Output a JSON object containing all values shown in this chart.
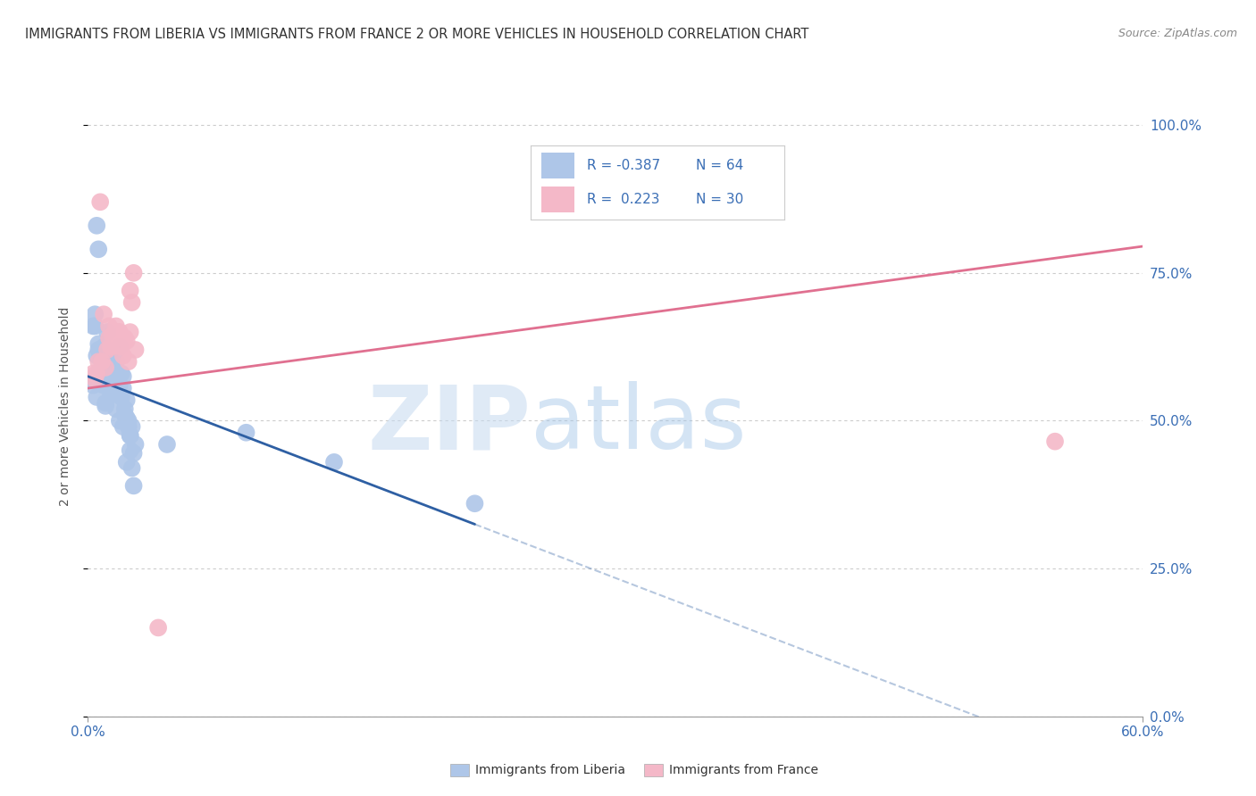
{
  "title": "IMMIGRANTS FROM LIBERIA VS IMMIGRANTS FROM FRANCE 2 OR MORE VEHICLES IN HOUSEHOLD CORRELATION CHART",
  "source": "Source: ZipAtlas.com",
  "ylabel": "2 or more Vehicles in Household",
  "ytick_labels": [
    "0.0%",
    "25.0%",
    "50.0%",
    "75.0%",
    "100.0%"
  ],
  "ytick_vals": [
    0.0,
    0.25,
    0.5,
    0.75,
    1.0
  ],
  "xlim": [
    0.0,
    0.6
  ],
  "ylim": [
    0.0,
    1.05
  ],
  "liberia_R": -0.387,
  "liberia_N": 64,
  "france_R": 0.223,
  "france_N": 30,
  "liberia_color": "#aec6e8",
  "france_color": "#f4b8c8",
  "liberia_line_color": "#2e5fa3",
  "france_line_color": "#e07090",
  "watermark_zip": "ZIP",
  "watermark_atlas": "atlas",
  "liberia_scatter_x": [
    0.005,
    0.006,
    0.007,
    0.008,
    0.009,
    0.01,
    0.011,
    0.012,
    0.013,
    0.014,
    0.015,
    0.016,
    0.017,
    0.018,
    0.019,
    0.02,
    0.021,
    0.022,
    0.023,
    0.024,
    0.025,
    0.026,
    0.027,
    0.003,
    0.004,
    0.006,
    0.008,
    0.01,
    0.012,
    0.014,
    0.016,
    0.018,
    0.02,
    0.022,
    0.024,
    0.005,
    0.007,
    0.009,
    0.011,
    0.013,
    0.015,
    0.017,
    0.019,
    0.021,
    0.023,
    0.025,
    0.004,
    0.006,
    0.008,
    0.01,
    0.012,
    0.014,
    0.016,
    0.018,
    0.02,
    0.022,
    0.024,
    0.026,
    0.14,
    0.22,
    0.09,
    0.045,
    0.003,
    0.005
  ],
  "liberia_scatter_y": [
    0.83,
    0.79,
    0.61,
    0.58,
    0.625,
    0.56,
    0.65,
    0.61,
    0.59,
    0.58,
    0.59,
    0.6,
    0.56,
    0.625,
    0.58,
    0.575,
    0.52,
    0.535,
    0.5,
    0.475,
    0.49,
    0.445,
    0.46,
    0.66,
    0.68,
    0.62,
    0.62,
    0.53,
    0.59,
    0.585,
    0.57,
    0.56,
    0.555,
    0.505,
    0.475,
    0.61,
    0.585,
    0.56,
    0.57,
    0.545,
    0.575,
    0.555,
    0.54,
    0.51,
    0.49,
    0.42,
    0.66,
    0.63,
    0.6,
    0.525,
    0.575,
    0.545,
    0.52,
    0.5,
    0.49,
    0.43,
    0.45,
    0.39,
    0.43,
    0.36,
    0.48,
    0.46,
    0.56,
    0.54
  ],
  "france_scatter_x": [
    0.007,
    0.009,
    0.012,
    0.015,
    0.018,
    0.021,
    0.024,
    0.006,
    0.01,
    0.013,
    0.016,
    0.019,
    0.022,
    0.025,
    0.008,
    0.011,
    0.014,
    0.017,
    0.02,
    0.023,
    0.026,
    0.005,
    0.004,
    0.003,
    0.027,
    0.012,
    0.018,
    0.024,
    0.55,
    0.04
  ],
  "france_scatter_y": [
    0.87,
    0.68,
    0.66,
    0.64,
    0.65,
    0.64,
    0.72,
    0.6,
    0.59,
    0.625,
    0.66,
    0.625,
    0.635,
    0.7,
    0.6,
    0.62,
    0.645,
    0.65,
    0.61,
    0.6,
    0.75,
    0.58,
    0.57,
    0.58,
    0.62,
    0.64,
    0.64,
    0.65,
    0.465,
    0.15
  ],
  "liberia_line_x0": 0.0,
  "liberia_line_y0": 0.575,
  "liberia_line_x1": 0.22,
  "liberia_line_y1": 0.325,
  "liberia_line_xdash_end": 0.55,
  "france_line_x0": 0.0,
  "france_line_y0": 0.555,
  "france_line_x1": 0.6,
  "france_line_y1": 0.795
}
